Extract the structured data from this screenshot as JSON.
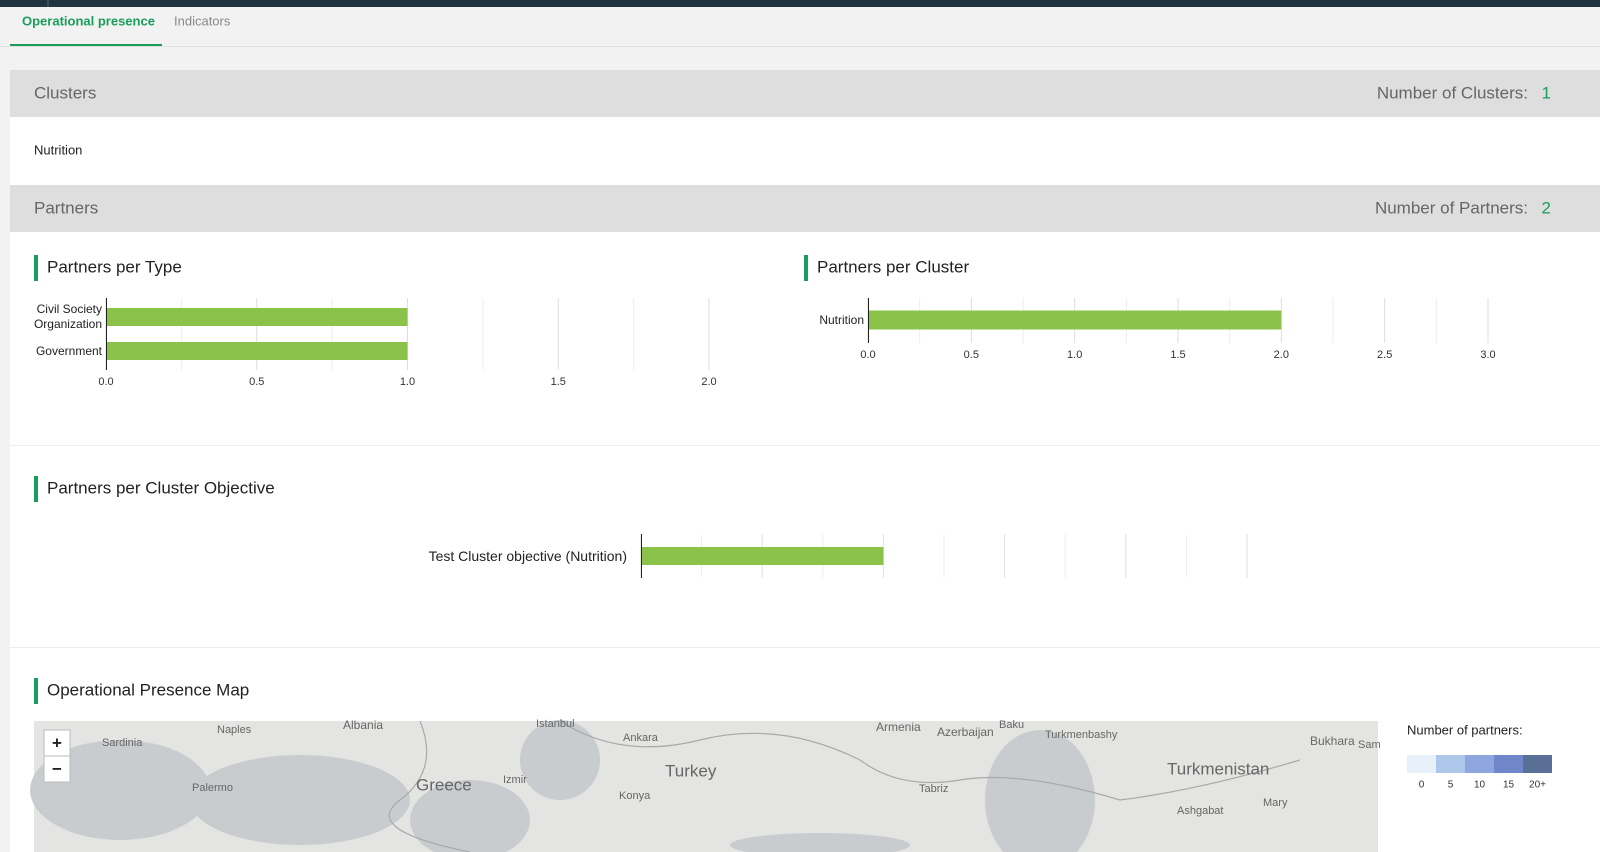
{
  "tabs": [
    {
      "label": "Operational presence",
      "active": true
    },
    {
      "label": "Indicators",
      "active": false
    }
  ],
  "clusters": {
    "title": "Clusters",
    "count_label": "Number of Clusters:",
    "count": 1,
    "items": [
      "Nutrition"
    ]
  },
  "partners": {
    "title": "Partners",
    "count_label": "Number of Partners:",
    "count": 2
  },
  "chart_data": [
    {
      "type": "bar",
      "orientation": "horizontal",
      "title": "Partners per Type",
      "categories": [
        "Civil Society Organization",
        "Government"
      ],
      "values": [
        1,
        1
      ],
      "color": "#8bc34a",
      "xlim": [
        0,
        2
      ],
      "xticks": [
        {
          "value": 0,
          "label": "0.0"
        },
        {
          "value": 0.5,
          "label": "0.5"
        },
        {
          "value": 1,
          "label": "1.0"
        },
        {
          "value": 1.5,
          "label": "1.5"
        },
        {
          "value": 2,
          "label": "2.0"
        }
      ],
      "minor_grid": true,
      "tick_labels": true
    },
    {
      "type": "bar",
      "orientation": "horizontal",
      "title": "Partners per Cluster",
      "categories": [
        "Nutrition"
      ],
      "values": [
        2
      ],
      "color": "#8bc34a",
      "xlim": [
        0,
        3
      ],
      "xticks": [
        {
          "value": 0,
          "label": "0.0"
        },
        {
          "value": 0.5,
          "label": "0.5"
        },
        {
          "value": 1,
          "label": "1.0"
        },
        {
          "value": 1.5,
          "label": "1.5"
        },
        {
          "value": 2,
          "label": "2.0"
        },
        {
          "value": 2.5,
          "label": "2.5"
        },
        {
          "value": 3,
          "label": "3.0"
        }
      ],
      "minor_grid": true,
      "tick_labels": true
    },
    {
      "type": "bar",
      "orientation": "horizontal",
      "title": "Partners per Cluster Objective",
      "categories": [
        "Test Cluster objective (Nutrition)"
      ],
      "values": [
        1
      ],
      "color": "#8bc34a",
      "xlim": [
        0,
        2.5
      ],
      "xticks": [
        0,
        0.5,
        1,
        1.5,
        2,
        2.5
      ],
      "minor_grid": true,
      "tick_labels": false
    }
  ],
  "map": {
    "title": "Operational Presence Map",
    "zoom_in": "+",
    "zoom_out": "−",
    "labels": [
      "Sardinia",
      "Naples",
      "Albania",
      "Istanbul",
      "Ankara",
      "Armenia",
      "Azerbaijan",
      "Baku",
      "Turkmenbashy",
      "Bukhara",
      "Sam",
      "Turkey",
      "Turkmenistan",
      "Greece",
      "Izmir",
      "Palermo",
      "Konya",
      "Tabriz",
      "Ashgabat",
      "Mary"
    ]
  },
  "map_legend": {
    "title": "Number of partners:",
    "bins": [
      {
        "label": "0",
        "color": "#e8f0fa"
      },
      {
        "label": "5",
        "color": "#aec6ea"
      },
      {
        "label": "10",
        "color": "#8ea6de"
      },
      {
        "label": "15",
        "color": "#6f86c8"
      },
      {
        "label": "20+",
        "color": "#5a6f95"
      }
    ]
  }
}
